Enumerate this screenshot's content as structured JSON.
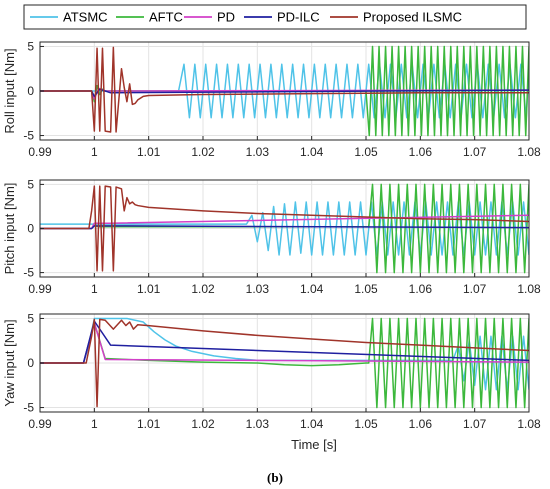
{
  "caption": "(b)",
  "colors": {
    "ATSMC": "#4fc3e8",
    "AFTC": "#3cb83c",
    "PD": "#d23fc8",
    "PD-ILC": "#1f1fa0",
    "Proposed ILSMC": "#a0342a",
    "axes": "#262626",
    "grid": "#e3e3e3"
  },
  "chart_data": [
    {
      "type": "line",
      "name": "roll",
      "ylabel": "Roll input [Nm]",
      "xlabel": "",
      "xlim": [
        0.99,
        1.08
      ],
      "ylim": [
        -5.5,
        5.5
      ],
      "xticks": [
        "0.99",
        "1",
        "1.01",
        "1.02",
        "1.03",
        "1.04",
        "1.05",
        "1.06",
        "1.07",
        "1.08"
      ],
      "yticks": [
        "-5",
        "0",
        "5"
      ],
      "grid": true,
      "legend": [
        "ATSMC",
        "AFTC",
        "PD",
        "PD-ILC",
        "Proposed ILSMC"
      ],
      "series": [
        {
          "name": "ATSMC",
          "x": [
            0.99,
            1.0155,
            1.0165,
            1.0175,
            1.0185,
            1.0195,
            1.0205,
            1.0215,
            1.0225,
            1.0235,
            1.0245,
            1.0255,
            1.0265,
            1.0275,
            1.0285,
            1.0295,
            1.0305,
            1.0315,
            1.0325,
            1.0335,
            1.0345,
            1.0355,
            1.0365,
            1.0375,
            1.0385,
            1.0395,
            1.0405,
            1.0415,
            1.0425,
            1.0435,
            1.0445,
            1.0455,
            1.0465,
            1.0475,
            1.0485,
            1.0495,
            1.0505,
            1.0515,
            1.0525,
            1.0535,
            1.0545,
            1.0555,
            1.0565,
            1.0575,
            1.0585,
            1.0595,
            1.0605,
            1.0615,
            1.0625,
            1.0635,
            1.0645,
            1.0655,
            1.0665,
            1.0675,
            1.0685,
            1.0695,
            1.0705,
            1.0715,
            1.0725,
            1.0735,
            1.0745,
            1.0755,
            1.0765,
            1.0775,
            1.0785,
            1.0795,
            1.08
          ],
          "y": [
            0,
            0,
            3,
            -3,
            3,
            -3,
            3,
            -3,
            3,
            -3,
            3,
            -3,
            3,
            -3,
            3,
            -3,
            3,
            -3,
            3,
            -3,
            3,
            -3,
            3,
            -3,
            3,
            -3,
            3,
            -3,
            3,
            -3,
            3,
            -3,
            3,
            -3,
            3,
            -3,
            3,
            -3,
            3,
            -3,
            3,
            -3,
            3,
            -3,
            3,
            -3,
            3,
            -3,
            3,
            -3,
            3,
            -3,
            3,
            -3,
            3,
            -3,
            3,
            -3,
            3,
            -3,
            3,
            -3,
            3,
            -3,
            3,
            -3,
            3
          ]
        },
        {
          "name": "AFTC",
          "x": [
            0.99,
            0.9995,
            1.0,
            1.0005,
            1.001,
            1.0015,
            1.002,
            1.05,
            1.0506,
            1.0512,
            1.0518,
            1.0524,
            1.053,
            1.0536,
            1.0542,
            1.0548,
            1.0554,
            1.056,
            1.0566,
            1.0572,
            1.0578,
            1.0584,
            1.059,
            1.0596,
            1.0602,
            1.0608,
            1.0614,
            1.062,
            1.0626,
            1.0632,
            1.0638,
            1.0644,
            1.065,
            1.0656,
            1.0662,
            1.0668,
            1.0674,
            1.068,
            1.0686,
            1.0692,
            1.0698,
            1.0704,
            1.071,
            1.0716,
            1.0722,
            1.0728,
            1.0734,
            1.074,
            1.0746,
            1.0752,
            1.0758,
            1.0764,
            1.077,
            1.0776,
            1.0782,
            1.0788,
            1.0794,
            1.08
          ],
          "y": [
            0,
            0,
            -1.2,
            0.6,
            -0.4,
            0.2,
            0,
            0,
            -5,
            5,
            -5,
            5,
            -5,
            5,
            -5,
            5,
            -5,
            5,
            -5,
            5,
            -5,
            5,
            -5,
            5,
            -5,
            5,
            -5,
            5,
            -5,
            5,
            -5,
            5,
            -5,
            5,
            -5,
            5,
            -5,
            5,
            -5,
            5,
            -5,
            5,
            -5,
            5,
            -5,
            5,
            -5,
            5,
            -5,
            5,
            -5,
            5,
            -5,
            5,
            -5,
            5,
            -5,
            5
          ]
        },
        {
          "name": "PD",
          "x": [
            0.99,
            0.9995,
            1.0,
            1.0008,
            1.002,
            1.08
          ],
          "y": [
            0,
            0,
            -0.9,
            0.3,
            0,
            0.1
          ]
        },
        {
          "name": "PD-ILC",
          "x": [
            0.99,
            0.9995,
            1.0,
            1.001,
            1.003,
            1.08
          ],
          "y": [
            0,
            0,
            -0.6,
            0.2,
            -0.2,
            0.1
          ]
        },
        {
          "name": "Proposed ILSMC",
          "x": [
            0.99,
            0.9995,
            1.0,
            1.0005,
            1.001,
            1.0015,
            1.002,
            1.003,
            1.0035,
            1.004,
            1.005,
            1.0055,
            1.006,
            1.0065,
            1.007,
            1.0075,
            1.008,
            1.0085,
            1.009,
            1.01,
            1.02,
            1.04,
            1.06,
            1.08
          ],
          "y": [
            0,
            0,
            -4.5,
            4.8,
            -4.5,
            4.8,
            -4.5,
            -4.6,
            4.9,
            -4.6,
            2.5,
            0.4,
            -1.2,
            0.8,
            -1.5,
            -1.4,
            -1.0,
            -0.8,
            -0.6,
            -0.5,
            -0.4,
            -0.3,
            -0.2,
            -0.2
          ]
        }
      ]
    },
    {
      "type": "line",
      "name": "pitch",
      "ylabel": "Pitch input [Nm]",
      "xlabel": "",
      "xlim": [
        0.99,
        1.08
      ],
      "ylim": [
        -5.5,
        5.5
      ],
      "xticks": [
        "0.99",
        "1",
        "1.01",
        "1.02",
        "1.03",
        "1.04",
        "1.05",
        "1.06",
        "1.07",
        "1.08"
      ],
      "yticks": [
        "-5",
        "0",
        "5"
      ],
      "grid": true,
      "series": [
        {
          "name": "ATSMC",
          "x": [
            0.99,
            1.028,
            1.029,
            1.03,
            1.031,
            1.032,
            1.033,
            1.034,
            1.035,
            1.036,
            1.037,
            1.038,
            1.039,
            1.04,
            1.041,
            1.042,
            1.043,
            1.044,
            1.045,
            1.046,
            1.047,
            1.048,
            1.049,
            1.05,
            1.051,
            1.052,
            1.053,
            1.054,
            1.055,
            1.056,
            1.057,
            1.058,
            1.059,
            1.06,
            1.061,
            1.062,
            1.063,
            1.064,
            1.065,
            1.066,
            1.067,
            1.068,
            1.069,
            1.07,
            1.071,
            1.072,
            1.073,
            1.074,
            1.075,
            1.076,
            1.077,
            1.078,
            1.079,
            1.08
          ],
          "y": [
            0.5,
            0.5,
            1.5,
            -1.5,
            1.8,
            -2.5,
            2.5,
            -3,
            2.8,
            -3,
            3,
            -2.8,
            3,
            -3,
            3,
            -3,
            3,
            -3,
            3,
            -3,
            3,
            -3,
            3,
            -3,
            3,
            -3,
            3,
            -3,
            3,
            -3,
            3,
            -3,
            3,
            -3,
            3,
            -3,
            3,
            -3,
            3,
            -3,
            3,
            -3,
            3,
            -3,
            3,
            -3,
            3,
            -3,
            3,
            -3,
            3,
            -3,
            3,
            -3
          ]
        },
        {
          "name": "AFTC",
          "x": [
            0.99,
            0.9995,
            1.0,
            1.001,
            1.002,
            1.0505,
            1.0512,
            1.052,
            1.0528,
            1.0536,
            1.0544,
            1.0552,
            1.056,
            1.0568,
            1.0576,
            1.0584,
            1.0592,
            1.06,
            1.0608,
            1.0616,
            1.0624,
            1.0632,
            1.064,
            1.0648,
            1.0656,
            1.0664,
            1.0672,
            1.068,
            1.0688,
            1.0696,
            1.0704,
            1.0712,
            1.072,
            1.0728,
            1.0736,
            1.0744,
            1.0752,
            1.076,
            1.0768,
            1.0776,
            1.0784,
            1.0792,
            1.08
          ],
          "y": [
            0,
            0,
            0.3,
            0.2,
            0.2,
            0.2,
            5,
            -5,
            5,
            -5,
            5,
            -5,
            5,
            -5,
            5,
            -5,
            5,
            -5,
            5,
            -5,
            5,
            -5,
            5,
            -5,
            5,
            -5,
            5,
            -5,
            5,
            -5,
            5,
            -5,
            5,
            -5,
            5,
            -5,
            5,
            -5,
            5,
            -5,
            5,
            -5,
            5
          ]
        },
        {
          "name": "PD",
          "x": [
            0.99,
            0.9995,
            1.0,
            1.003,
            1.08
          ],
          "y": [
            0,
            0,
            0.6,
            0.6,
            1.5
          ]
        },
        {
          "name": "PD-ILC",
          "x": [
            0.99,
            0.9995,
            1.0,
            1.003,
            1.08
          ],
          "y": [
            0,
            0,
            0.3,
            0.3,
            0.1
          ]
        },
        {
          "name": "Proposed ILSMC",
          "x": [
            0.99,
            0.999,
            0.9995,
            1.0,
            1.0005,
            1.001,
            1.0015,
            1.002,
            1.003,
            1.0035,
            1.004,
            1.005,
            1.0055,
            1.006,
            1.0065,
            1.007,
            1.0075,
            1.008,
            1.01,
            1.02,
            1.03,
            1.04,
            1.05,
            1.06,
            1.07,
            1.08
          ],
          "y": [
            0,
            0,
            2.0,
            4.8,
            -4.8,
            4.8,
            -4.8,
            4.8,
            4.7,
            -4.8,
            4.7,
            4.5,
            2.0,
            3.5,
            2.8,
            3.0,
            2.7,
            2.6,
            2.4,
            2.0,
            1.7,
            1.5,
            1.3,
            1.1,
            1.0,
            0.8
          ]
        }
      ]
    },
    {
      "type": "line",
      "name": "yaw",
      "ylabel": "Yaw input [Nm]",
      "xlabel": "Time [s]",
      "xlim": [
        0.99,
        1.08
      ],
      "ylim": [
        -5.5,
        5.5
      ],
      "xticks": [
        "0.99",
        "1",
        "1.01",
        "1.02",
        "1.03",
        "1.04",
        "1.05",
        "1.06",
        "1.07",
        "1.08"
      ],
      "yticks": [
        "-5",
        "0",
        "5"
      ],
      "grid": true,
      "series": [
        {
          "name": "ATSMC",
          "x": [
            0.99,
            0.998,
            0.999,
            1.0,
            1.002,
            1.006,
            1.009,
            1.011,
            1.013,
            1.015,
            1.018,
            1.022,
            1.026,
            1.03,
            1.04,
            1.05,
            1.06,
            1.066,
            1.067,
            1.068,
            1.069,
            1.07,
            1.071,
            1.072,
            1.073,
            1.074,
            1.075,
            1.076,
            1.077,
            1.078,
            1.079,
            1.08
          ],
          "y": [
            0,
            0,
            2.0,
            5.0,
            5.0,
            5.0,
            4.6,
            3.5,
            2.6,
            1.9,
            1.3,
            0.8,
            0.5,
            0.3,
            0.3,
            0.3,
            0.3,
            0.3,
            2.0,
            -2.0,
            2.5,
            -2.5,
            3,
            -3,
            3,
            -3,
            3,
            -3,
            3,
            -3,
            3,
            -3
          ]
        },
        {
          "name": "AFTC",
          "x": [
            0.99,
            0.998,
            1.0,
            1.002,
            1.01,
            1.02,
            1.03,
            1.035,
            1.04,
            1.045,
            1.05,
            1.0505,
            1.0512,
            1.052,
            1.0528,
            1.0536,
            1.0544,
            1.0552,
            1.056,
            1.0568,
            1.0576,
            1.0584,
            1.0592,
            1.06,
            1.0608,
            1.0616,
            1.0624,
            1.0632,
            1.064,
            1.0648,
            1.0656,
            1.0664,
            1.0672,
            1.068,
            1.0688,
            1.0696,
            1.0704,
            1.0712,
            1.072,
            1.0728,
            1.0736,
            1.0744,
            1.0752,
            1.076,
            1.0768,
            1.0776,
            1.0784,
            1.0792,
            1.08
          ],
          "y": [
            0,
            0,
            4.5,
            0.5,
            0.3,
            0.1,
            0,
            -0.2,
            -0.3,
            -0.2,
            0,
            0,
            5,
            -5,
            5,
            -5,
            5,
            -5,
            5,
            -5,
            5,
            -5,
            5,
            -5,
            5,
            -5,
            5,
            -5,
            5,
            -5,
            5,
            -5,
            5,
            -5,
            5,
            -5,
            5,
            -5,
            5,
            -5,
            5,
            -5,
            5,
            -5,
            5,
            -5,
            5,
            -5,
            5
          ]
        },
        {
          "name": "PD",
          "x": [
            0.99,
            0.998,
            1.0,
            1.002,
            1.08
          ],
          "y": [
            0,
            0,
            4.5,
            0.4,
            0.1
          ]
        },
        {
          "name": "PD-ILC",
          "x": [
            0.99,
            0.998,
            1.0,
            1.003,
            1.08
          ],
          "y": [
            0,
            0,
            4.7,
            2.0,
            0.3
          ]
        },
        {
          "name": "Proposed ILSMC",
          "x": [
            0.99,
            0.9985,
            0.9995,
            1.0,
            1.0005,
            1.001,
            1.002,
            1.0035,
            1.005,
            1.0058,
            1.0065,
            1.0072,
            1.008,
            1.01,
            1.02,
            1.03,
            1.04,
            1.05,
            1.06,
            1.07,
            1.08
          ],
          "y": [
            0,
            0,
            3.0,
            4.9,
            -4.9,
            4.9,
            4.8,
            3.8,
            4.8,
            4.2,
            4.6,
            3.8,
            4.3,
            4.2,
            3.6,
            3.1,
            2.7,
            2.3,
            2.0,
            1.7,
            1.4
          ]
        }
      ]
    }
  ]
}
